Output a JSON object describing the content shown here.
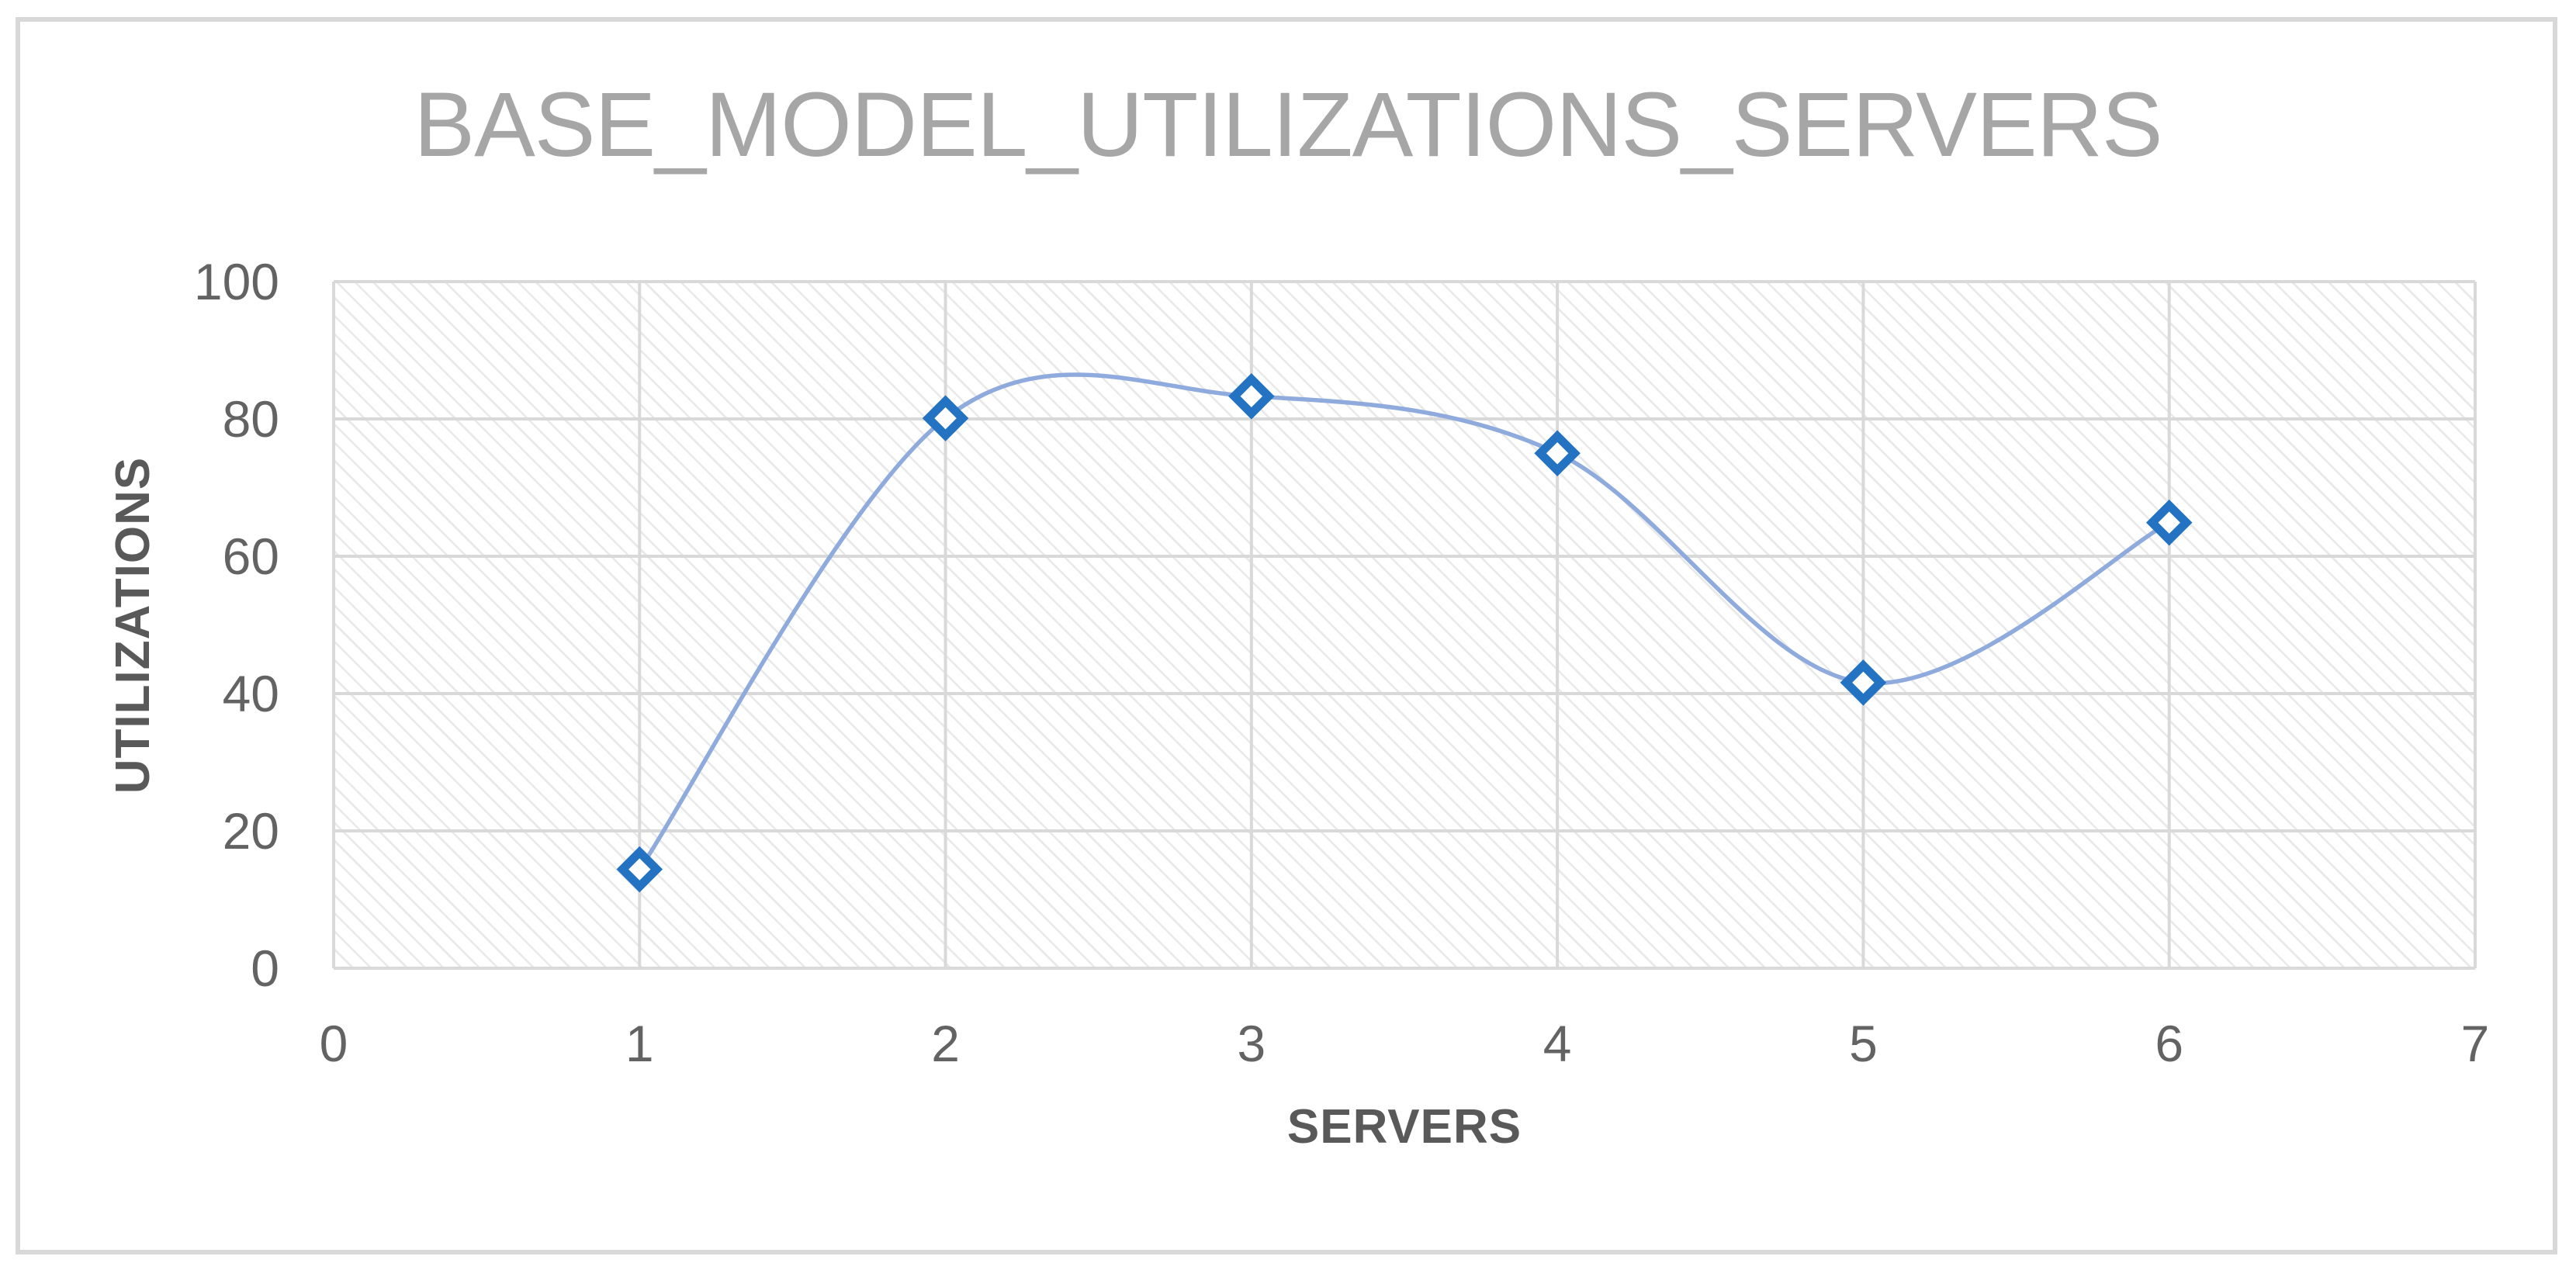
{
  "chart_data": {
    "type": "line",
    "title": "BASE_MODEL_UTILIZATIONS_SERVERS",
    "xlabel": "SERVERS",
    "ylabel": "UTILIZATIONS",
    "series": [
      {
        "name": "BASE_MODEL_UTILIZATIONS_SERVERS",
        "x": [
          1,
          2,
          3,
          4,
          5,
          6
        ],
        "y": [
          14.4,
          80.1,
          83.3,
          75.0,
          41.6,
          64.9
        ]
      }
    ],
    "xlim": [
      0,
      7
    ],
    "ylim": [
      0,
      100
    ],
    "x_ticks": [
      0,
      1,
      2,
      3,
      4,
      5,
      6,
      7
    ],
    "y_ticks": [
      0,
      20,
      40,
      60,
      80,
      100
    ],
    "grid": true,
    "smooth_line": true,
    "marker": "diamond",
    "legend_position": "none",
    "plot_area_fill": "light-downward-diagonal-hatch",
    "colors": {
      "line": "#8FAADC",
      "marker_border": "#2373C2",
      "marker_fill": "#FFFFFF",
      "gridline": "#D9D9D9",
      "tick_text": "#636363",
      "axis_title_text": "#595959",
      "title_text": "#A6A6A6",
      "frame_border": "#D8D8D8",
      "background": "#FFFFFF"
    }
  }
}
